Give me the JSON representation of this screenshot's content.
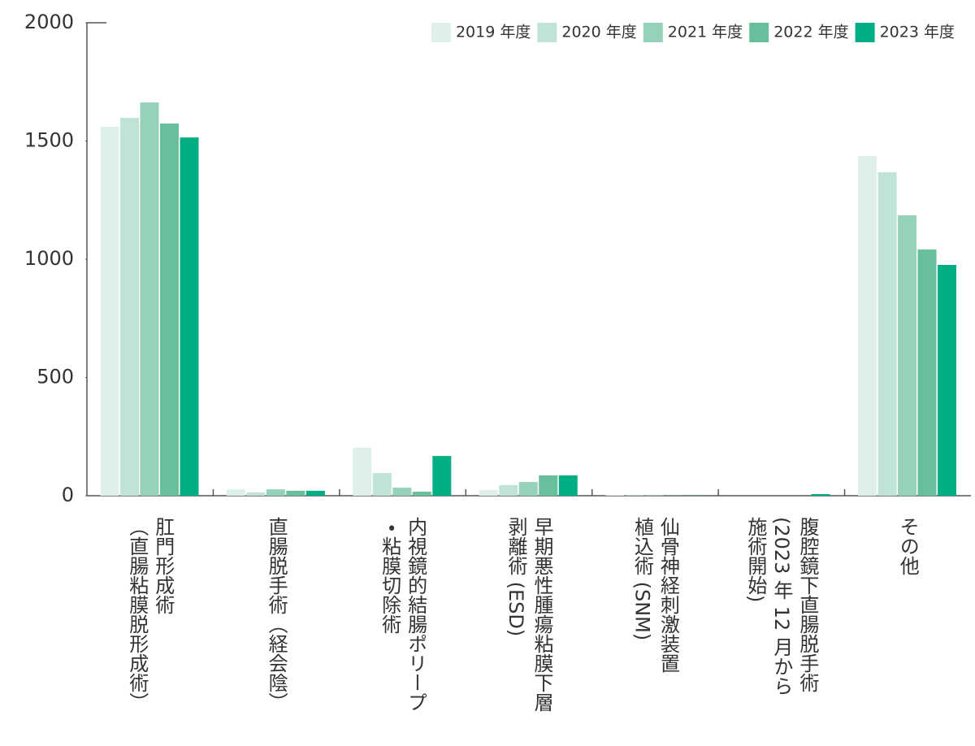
{
  "chart_data": {
    "type": "bar",
    "categories": [
      "肛門形成術\n（直腸粘膜脱形成術）",
      "直腸脱手術（経会陰）",
      "内視鏡的結腸ポリープ\n・粘膜切除術",
      "早期悪性腫瘍粘膜下層\n剥離術 (ESD)",
      "仙骨神経刺激装置\n植込術 (SNM)",
      "腹腔鏡下直腸脱手術\n(2023 年 12 月から\n施術開始)",
      "その他"
    ],
    "series": [
      {
        "name": "2019 年度",
        "color": "#dff0e9",
        "values": [
          1560,
          27,
          203,
          24,
          3,
          0,
          1436
        ]
      },
      {
        "name": "2020 年度",
        "color": "#bfe3d4",
        "values": [
          1598,
          14,
          96,
          45,
          2,
          0,
          1368
        ]
      },
      {
        "name": "2021 年度",
        "color": "#96d1b9",
        "values": [
          1663,
          27,
          34,
          58,
          3,
          0,
          1186
        ]
      },
      {
        "name": "2022 年度",
        "color": "#68bf9b",
        "values": [
          1574,
          21,
          17,
          86,
          1,
          0,
          1041
        ]
      },
      {
        "name": "2023 年度",
        "color": "#00ae84",
        "values": [
          1515,
          21,
          168,
          86,
          1,
          7,
          976
        ]
      }
    ],
    "ylim": [
      0,
      2000
    ],
    "yticks": [
      0,
      500,
      1000,
      1500,
      2000
    ],
    "grid": false,
    "legend": "top-right"
  }
}
